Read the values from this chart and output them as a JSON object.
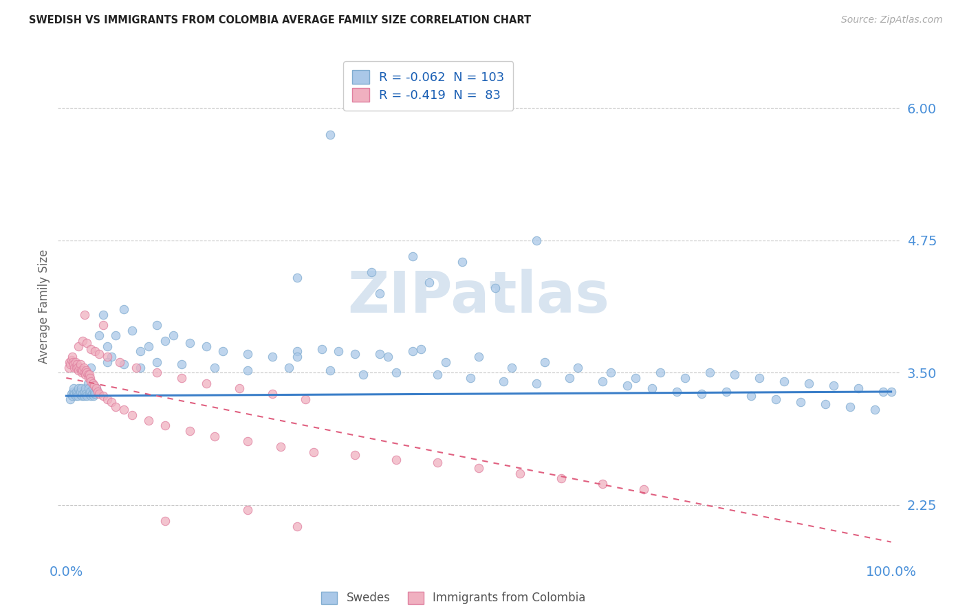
{
  "title": "SWEDISH VS IMMIGRANTS FROM COLOMBIA AVERAGE FAMILY SIZE CORRELATION CHART",
  "source": "Source: ZipAtlas.com",
  "ylabel": "Average Family Size",
  "yticks": [
    2.25,
    3.5,
    4.75,
    6.0
  ],
  "legend_R1": "-0.062",
  "legend_N1": "103",
  "legend_R2": "-0.419",
  "legend_N2": "83",
  "background_color": "#ffffff",
  "grid_color": "#c8c8c8",
  "swede_fill": "#aac8e8",
  "swede_edge": "#80acd0",
  "colombia_fill": "#f0b0c0",
  "colombia_edge": "#e080a0",
  "swede_line": "#3a7ec8",
  "colombia_line": "#e06080",
  "watermark_color": "#d8e4f0",
  "swedes_x": [
    0.5,
    0.6,
    0.7,
    0.8,
    0.9,
    1.0,
    1.1,
    1.2,
    1.3,
    1.4,
    1.5,
    1.6,
    1.7,
    1.8,
    1.9,
    2.0,
    2.1,
    2.2,
    2.3,
    2.4,
    2.5,
    2.6,
    2.7,
    2.8,
    2.9,
    3.0,
    3.1,
    3.2,
    3.3,
    3.4,
    3.5,
    3.6,
    4.0,
    4.5,
    5.0,
    5.5,
    6.0,
    7.0,
    8.0,
    9.0,
    10.0,
    11.0,
    12.0,
    13.0,
    15.0,
    17.0,
    19.0,
    22.0,
    25.0,
    28.0,
    31.0,
    35.0,
    39.0,
    42.0,
    46.0,
    50.0,
    54.0,
    58.0,
    62.0,
    66.0,
    69.0,
    72.0,
    75.0,
    78.0,
    81.0,
    84.0,
    87.0,
    90.0,
    93.0,
    96.0,
    99.0,
    3.0,
    5.0,
    7.0,
    9.0,
    11.0,
    14.0,
    18.0,
    22.0,
    27.0,
    32.0,
    36.0,
    40.0,
    45.0,
    49.0,
    53.0,
    57.0,
    61.0,
    65.0,
    68.0,
    71.0,
    74.0,
    77.0,
    80.0,
    83.0,
    86.0,
    89.0,
    92.0,
    95.0,
    98.0,
    100.0,
    28.0,
    33.0,
    38.0,
    43.0
  ],
  "swedes_y": [
    3.25,
    3.3,
    3.28,
    3.32,
    3.35,
    3.3,
    3.28,
    3.32,
    3.3,
    3.28,
    3.35,
    3.3,
    3.32,
    3.35,
    3.28,
    3.3,
    3.28,
    3.32,
    3.35,
    3.3,
    3.28,
    3.4,
    3.35,
    3.3,
    3.32,
    3.28,
    3.3,
    3.35,
    3.28,
    3.32,
    3.3,
    3.35,
    3.85,
    4.05,
    3.75,
    3.65,
    3.85,
    4.1,
    3.9,
    3.7,
    3.75,
    3.95,
    3.8,
    3.85,
    3.78,
    3.75,
    3.7,
    3.68,
    3.65,
    3.7,
    3.72,
    3.68,
    3.65,
    3.7,
    3.6,
    3.65,
    3.55,
    3.6,
    3.55,
    3.5,
    3.45,
    3.5,
    3.45,
    3.5,
    3.48,
    3.45,
    3.42,
    3.4,
    3.38,
    3.35,
    3.32,
    3.55,
    3.6,
    3.58,
    3.55,
    3.6,
    3.58,
    3.55,
    3.52,
    3.55,
    3.52,
    3.48,
    3.5,
    3.48,
    3.45,
    3.42,
    3.4,
    3.45,
    3.42,
    3.38,
    3.35,
    3.32,
    3.3,
    3.32,
    3.28,
    3.25,
    3.22,
    3.2,
    3.18,
    3.15,
    3.32,
    3.65,
    3.7,
    3.68,
    3.72
  ],
  "swedes_x_outliers": [
    32.0,
    57.0,
    42.0,
    48.0,
    37.0,
    28.0,
    44.0,
    52.0,
    38.0
  ],
  "swedes_y_outliers": [
    5.75,
    4.75,
    4.6,
    4.55,
    4.45,
    4.4,
    4.35,
    4.3,
    4.25
  ],
  "colombia_x": [
    0.3,
    0.4,
    0.5,
    0.6,
    0.7,
    0.8,
    0.9,
    1.0,
    1.1,
    1.2,
    1.3,
    1.4,
    1.5,
    1.6,
    1.7,
    1.8,
    1.9,
    2.0,
    2.1,
    2.2,
    2.3,
    2.4,
    2.5,
    2.6,
    2.7,
    2.8,
    2.9,
    3.0,
    3.2,
    3.4,
    3.6,
    3.8,
    4.0,
    4.5,
    5.0,
    5.5,
    6.0,
    7.0,
    8.0,
    10.0,
    12.0,
    15.0,
    18.0,
    22.0,
    26.0,
    30.0,
    35.0,
    40.0,
    45.0,
    50.0,
    55.0,
    60.0,
    65.0,
    70.0,
    1.5,
    2.0,
    2.5,
    3.0,
    3.5,
    4.0,
    5.0,
    6.5,
    8.5,
    11.0,
    14.0,
    17.0,
    21.0,
    25.0,
    29.0
  ],
  "colombia_y": [
    3.55,
    3.6,
    3.58,
    3.62,
    3.65,
    3.6,
    3.58,
    3.55,
    3.6,
    3.55,
    3.58,
    3.55,
    3.52,
    3.55,
    3.58,
    3.52,
    3.5,
    3.52,
    3.55,
    3.5,
    3.48,
    3.52,
    3.5,
    3.48,
    3.45,
    3.48,
    3.45,
    3.42,
    3.4,
    3.38,
    3.35,
    3.32,
    3.3,
    3.28,
    3.25,
    3.22,
    3.18,
    3.15,
    3.1,
    3.05,
    3.0,
    2.95,
    2.9,
    2.85,
    2.8,
    2.75,
    2.72,
    2.68,
    2.65,
    2.6,
    2.55,
    2.5,
    2.45,
    2.4,
    3.75,
    3.8,
    3.78,
    3.72,
    3.7,
    3.68,
    3.65,
    3.6,
    3.55,
    3.5,
    3.45,
    3.4,
    3.35,
    3.3,
    3.25
  ],
  "colombia_x_outliers": [
    2.2,
    4.5,
    12.0,
    22.0,
    28.0
  ],
  "colombia_y_outliers": [
    4.05,
    3.95,
    2.1,
    2.2,
    2.05
  ]
}
